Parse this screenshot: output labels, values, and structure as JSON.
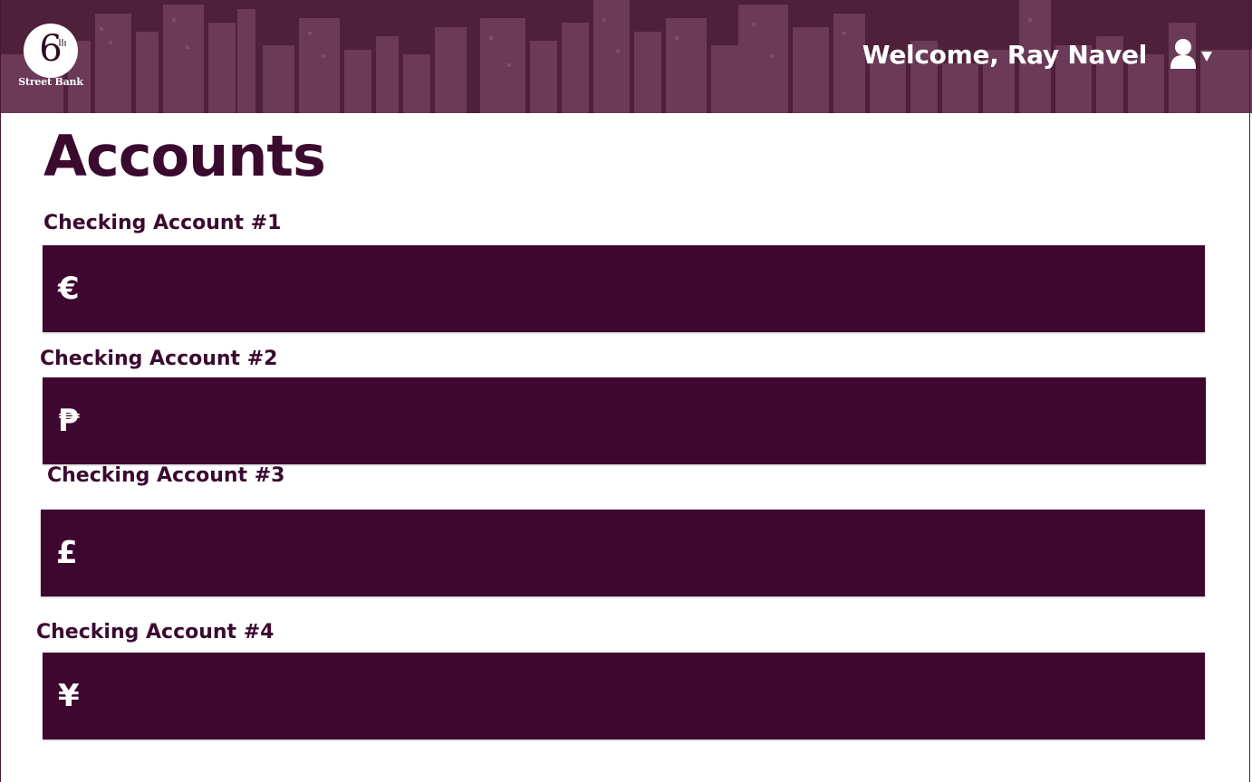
{
  "header": {
    "logo_number": "6",
    "logo_text": "Street Bank",
    "welcome": "Welcome, Ray Navel"
  },
  "page": {
    "title": "Accounts"
  },
  "accounts": [
    {
      "label": "Checking Account #1",
      "currency_symbol": "€"
    },
    {
      "label": "Checking Account #2",
      "currency_symbol": "₱"
    },
    {
      "label": "Checking Account #3",
      "currency_symbol": "£"
    },
    {
      "label": "Checking Account #4",
      "currency_symbol": "¥"
    }
  ],
  "colors": {
    "header_bg": "#53293f",
    "brand_dark": "#3b0a2f",
    "card_bg": "#3d0730",
    "text_light": "#ffffff"
  },
  "icons": {
    "user": "user-icon",
    "caret": "chevron-down-icon"
  }
}
